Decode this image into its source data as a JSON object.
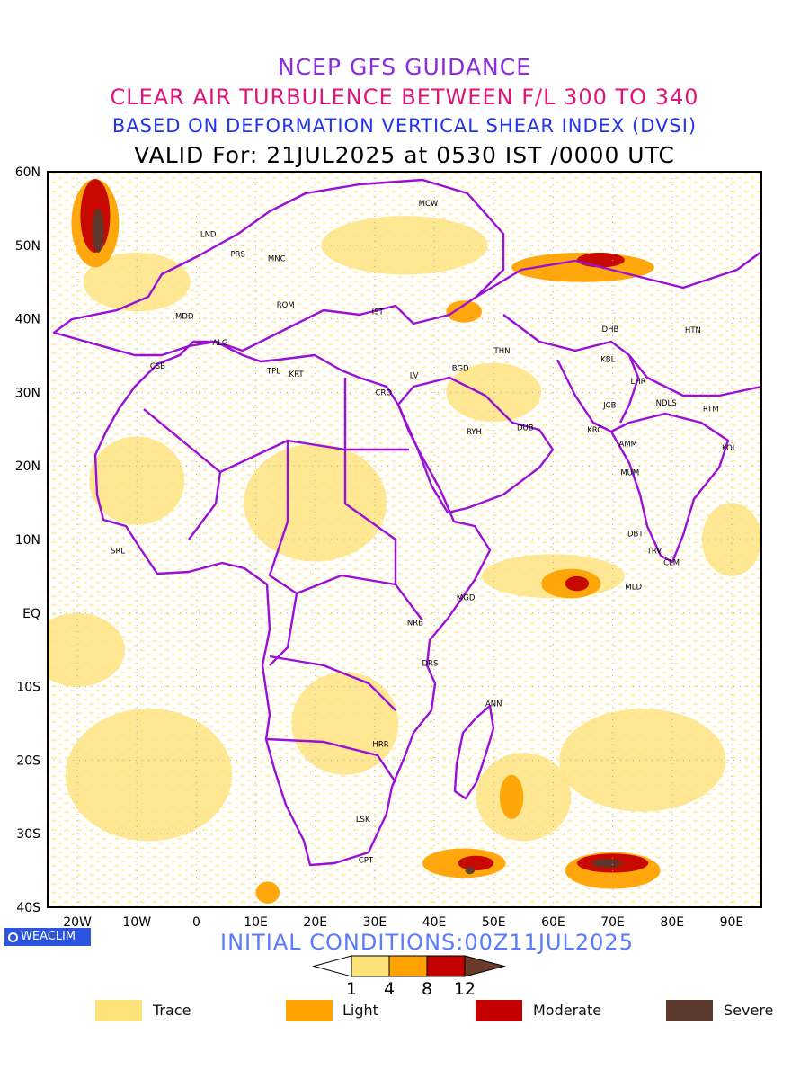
{
  "titles": {
    "line1": "NCEP GFS GUIDANCE",
    "line2": "CLEAR AIR TURBULENCE BETWEEN F/L 300 TO 340",
    "line3": "BASED ON DEFORMATION VERTICAL SHEAR INDEX (DVSI)",
    "line4": "VALID For: 21JUL2025 at 0530 IST /0000 UTC"
  },
  "map": {
    "lat_labels": [
      "60N",
      "50N",
      "40N",
      "30N",
      "20N",
      "10N",
      "EQ",
      "10S",
      "20S",
      "30S",
      "40S"
    ],
    "lon_labels": [
      "20W",
      "10W",
      "0",
      "10E",
      "20E",
      "30E",
      "40E",
      "50E",
      "60E",
      "70E",
      "80E",
      "90E"
    ],
    "lon_range": [
      -25,
      95
    ],
    "lat_range": [
      -40,
      60
    ],
    "border_color": "#9b10d6",
    "stations": [
      {
        "code": "MCW",
        "lon": 39,
        "lat": 55.7
      },
      {
        "code": "LND",
        "lon": 2,
        "lat": 51.5
      },
      {
        "code": "PRS",
        "lon": 7,
        "lat": 48.8
      },
      {
        "code": "MNC",
        "lon": 13.5,
        "lat": 48.2
      },
      {
        "code": "ROM",
        "lon": 15,
        "lat": 41.9
      },
      {
        "code": "MDD",
        "lon": -2,
        "lat": 40.4
      },
      {
        "code": "IST",
        "lon": 30.5,
        "lat": 41
      },
      {
        "code": "ALG",
        "lon": 4,
        "lat": 36.8
      },
      {
        "code": "CSB",
        "lon": -6.5,
        "lat": 33.6
      },
      {
        "code": "TPL",
        "lon": 13,
        "lat": 32.9
      },
      {
        "code": "KRT",
        "lon": 16.8,
        "lat": 32.5
      },
      {
        "code": "LV",
        "lon": 36.6,
        "lat": 32.3
      },
      {
        "code": "CRO",
        "lon": 31.5,
        "lat": 30
      },
      {
        "code": "BGD",
        "lon": 44.4,
        "lat": 33.3
      },
      {
        "code": "THN",
        "lon": 51.4,
        "lat": 35.7
      },
      {
        "code": "DHB",
        "lon": 69.6,
        "lat": 38.6
      },
      {
        "code": "HTN",
        "lon": 83.5,
        "lat": 38.5
      },
      {
        "code": "KBL",
        "lon": 69.2,
        "lat": 34.5
      },
      {
        "code": "LHR",
        "lon": 74.3,
        "lat": 31.5
      },
      {
        "code": "NDLS",
        "lon": 79,
        "lat": 28.6
      },
      {
        "code": "RYH",
        "lon": 46.7,
        "lat": 24.7
      },
      {
        "code": "DUB",
        "lon": 55.3,
        "lat": 25.2
      },
      {
        "code": "JCB",
        "lon": 69.5,
        "lat": 28.3
      },
      {
        "code": "KRC",
        "lon": 67,
        "lat": 24.9
      },
      {
        "code": "AMM",
        "lon": 72.6,
        "lat": 23
      },
      {
        "code": "RTM",
        "lon": 86.5,
        "lat": 27.8
      },
      {
        "code": "KOL",
        "lon": 89.6,
        "lat": 22.5
      },
      {
        "code": "MUM",
        "lon": 72.9,
        "lat": 19.1
      },
      {
        "code": "DBT",
        "lon": 73.8,
        "lat": 10.8
      },
      {
        "code": "TRV",
        "lon": 77,
        "lat": 8.5
      },
      {
        "code": "CLM",
        "lon": 79.9,
        "lat": 6.9
      },
      {
        "code": "MLD",
        "lon": 73.5,
        "lat": 3.6
      },
      {
        "code": "SRL",
        "lon": -13.2,
        "lat": 8.5
      },
      {
        "code": "MGD",
        "lon": 45.3,
        "lat": 2.1
      },
      {
        "code": "NRB",
        "lon": 36.8,
        "lat": -1.3
      },
      {
        "code": "DRS",
        "lon": 39.3,
        "lat": -6.8
      },
      {
        "code": "ANN",
        "lon": 50,
        "lat": -12.3
      },
      {
        "code": "HRR",
        "lon": 31,
        "lat": -17.8
      },
      {
        "code": "LSK",
        "lon": 28,
        "lat": -28
      },
      {
        "code": "CPT",
        "lon": 28.5,
        "lat": -33.6
      }
    ]
  },
  "footer": {
    "logo": "WEACLIM",
    "initial": "INITIAL CONDITIONS:00Z11JUL2025"
  },
  "colorbar": {
    "ticks": [
      "1",
      "4",
      "8",
      "12"
    ],
    "colors": [
      "#ffe27a",
      "#ffa200",
      "#c40000",
      "#6b3a2a"
    ]
  },
  "legend": [
    {
      "label": "Trace",
      "color": "#ffe27a"
    },
    {
      "label": "Light",
      "color": "#ffa200"
    },
    {
      "label": "Moderate",
      "color": "#c40000"
    },
    {
      "label": "Severe",
      "color": "#5c3a2e"
    }
  ],
  "turbulence_areas": [
    {
      "level": "Trace",
      "lon": -10,
      "lat": 45,
      "rx": 9,
      "ry": 4
    },
    {
      "level": "Trace",
      "lon": -10,
      "lat": 18,
      "rx": 8,
      "ry": 6
    },
    {
      "level": "Trace",
      "lon": -20,
      "lat": -5,
      "rx": 8,
      "ry": 5
    },
    {
      "level": "Trace",
      "lon": -8,
      "lat": -22,
      "rx": 14,
      "ry": 9
    },
    {
      "level": "Trace",
      "lon": 20,
      "lat": 15,
      "rx": 12,
      "ry": 8
    },
    {
      "level": "Trace",
      "lon": 25,
      "lat": -15,
      "rx": 9,
      "ry": 7
    },
    {
      "level": "Trace",
      "lon": 35,
      "lat": 50,
      "rx": 14,
      "ry": 4
    },
    {
      "level": "Trace",
      "lon": 60,
      "lat": 5,
      "rx": 12,
      "ry": 3
    },
    {
      "level": "Trace",
      "lon": 75,
      "lat": -20,
      "rx": 14,
      "ry": 7
    },
    {
      "level": "Trace",
      "lon": 55,
      "lat": -25,
      "rx": 8,
      "ry": 6
    },
    {
      "level": "Trace",
      "lon": 90,
      "lat": 10,
      "rx": 5,
      "ry": 5
    },
    {
      "level": "Trace",
      "lon": 50,
      "lat": 30,
      "rx": 8,
      "ry": 4
    },
    {
      "level": "Light",
      "lon": -17,
      "lat": 53,
      "rx": 4,
      "ry": 6
    },
    {
      "level": "Light",
      "lon": 65,
      "lat": 47,
      "rx": 12,
      "ry": 2
    },
    {
      "level": "Light",
      "lon": 45,
      "lat": 41,
      "rx": 3,
      "ry": 1.5
    },
    {
      "level": "Light",
      "lon": 63,
      "lat": 4,
      "rx": 5,
      "ry": 2
    },
    {
      "level": "Light",
      "lon": 70,
      "lat": -35,
      "rx": 8,
      "ry": 2.5
    },
    {
      "level": "Light",
      "lon": 45,
      "lat": -34,
      "rx": 7,
      "ry": 2
    },
    {
      "level": "Light",
      "lon": 53,
      "lat": -25,
      "rx": 2,
      "ry": 3
    },
    {
      "level": "Light",
      "lon": 12,
      "lat": -38,
      "rx": 2,
      "ry": 1.5
    },
    {
      "level": "Moderate",
      "lon": -17,
      "lat": 54,
      "rx": 2.5,
      "ry": 5
    },
    {
      "level": "Moderate",
      "lon": 68,
      "lat": 48,
      "rx": 4,
      "ry": 1
    },
    {
      "level": "Moderate",
      "lon": 70,
      "lat": -34,
      "rx": 6,
      "ry": 1.3
    },
    {
      "level": "Moderate",
      "lon": 47,
      "lat": -34,
      "rx": 3,
      "ry": 1
    },
    {
      "level": "Moderate",
      "lon": 64,
      "lat": 4,
      "rx": 2,
      "ry": 1
    },
    {
      "level": "Severe",
      "lon": -16.5,
      "lat": 52,
      "rx": 1,
      "ry": 3
    },
    {
      "level": "Severe",
      "lon": 69,
      "lat": -34,
      "rx": 2.5,
      "ry": 0.6
    },
    {
      "level": "Severe",
      "lon": 46,
      "lat": -35,
      "rx": 0.8,
      "ry": 0.5
    }
  ]
}
